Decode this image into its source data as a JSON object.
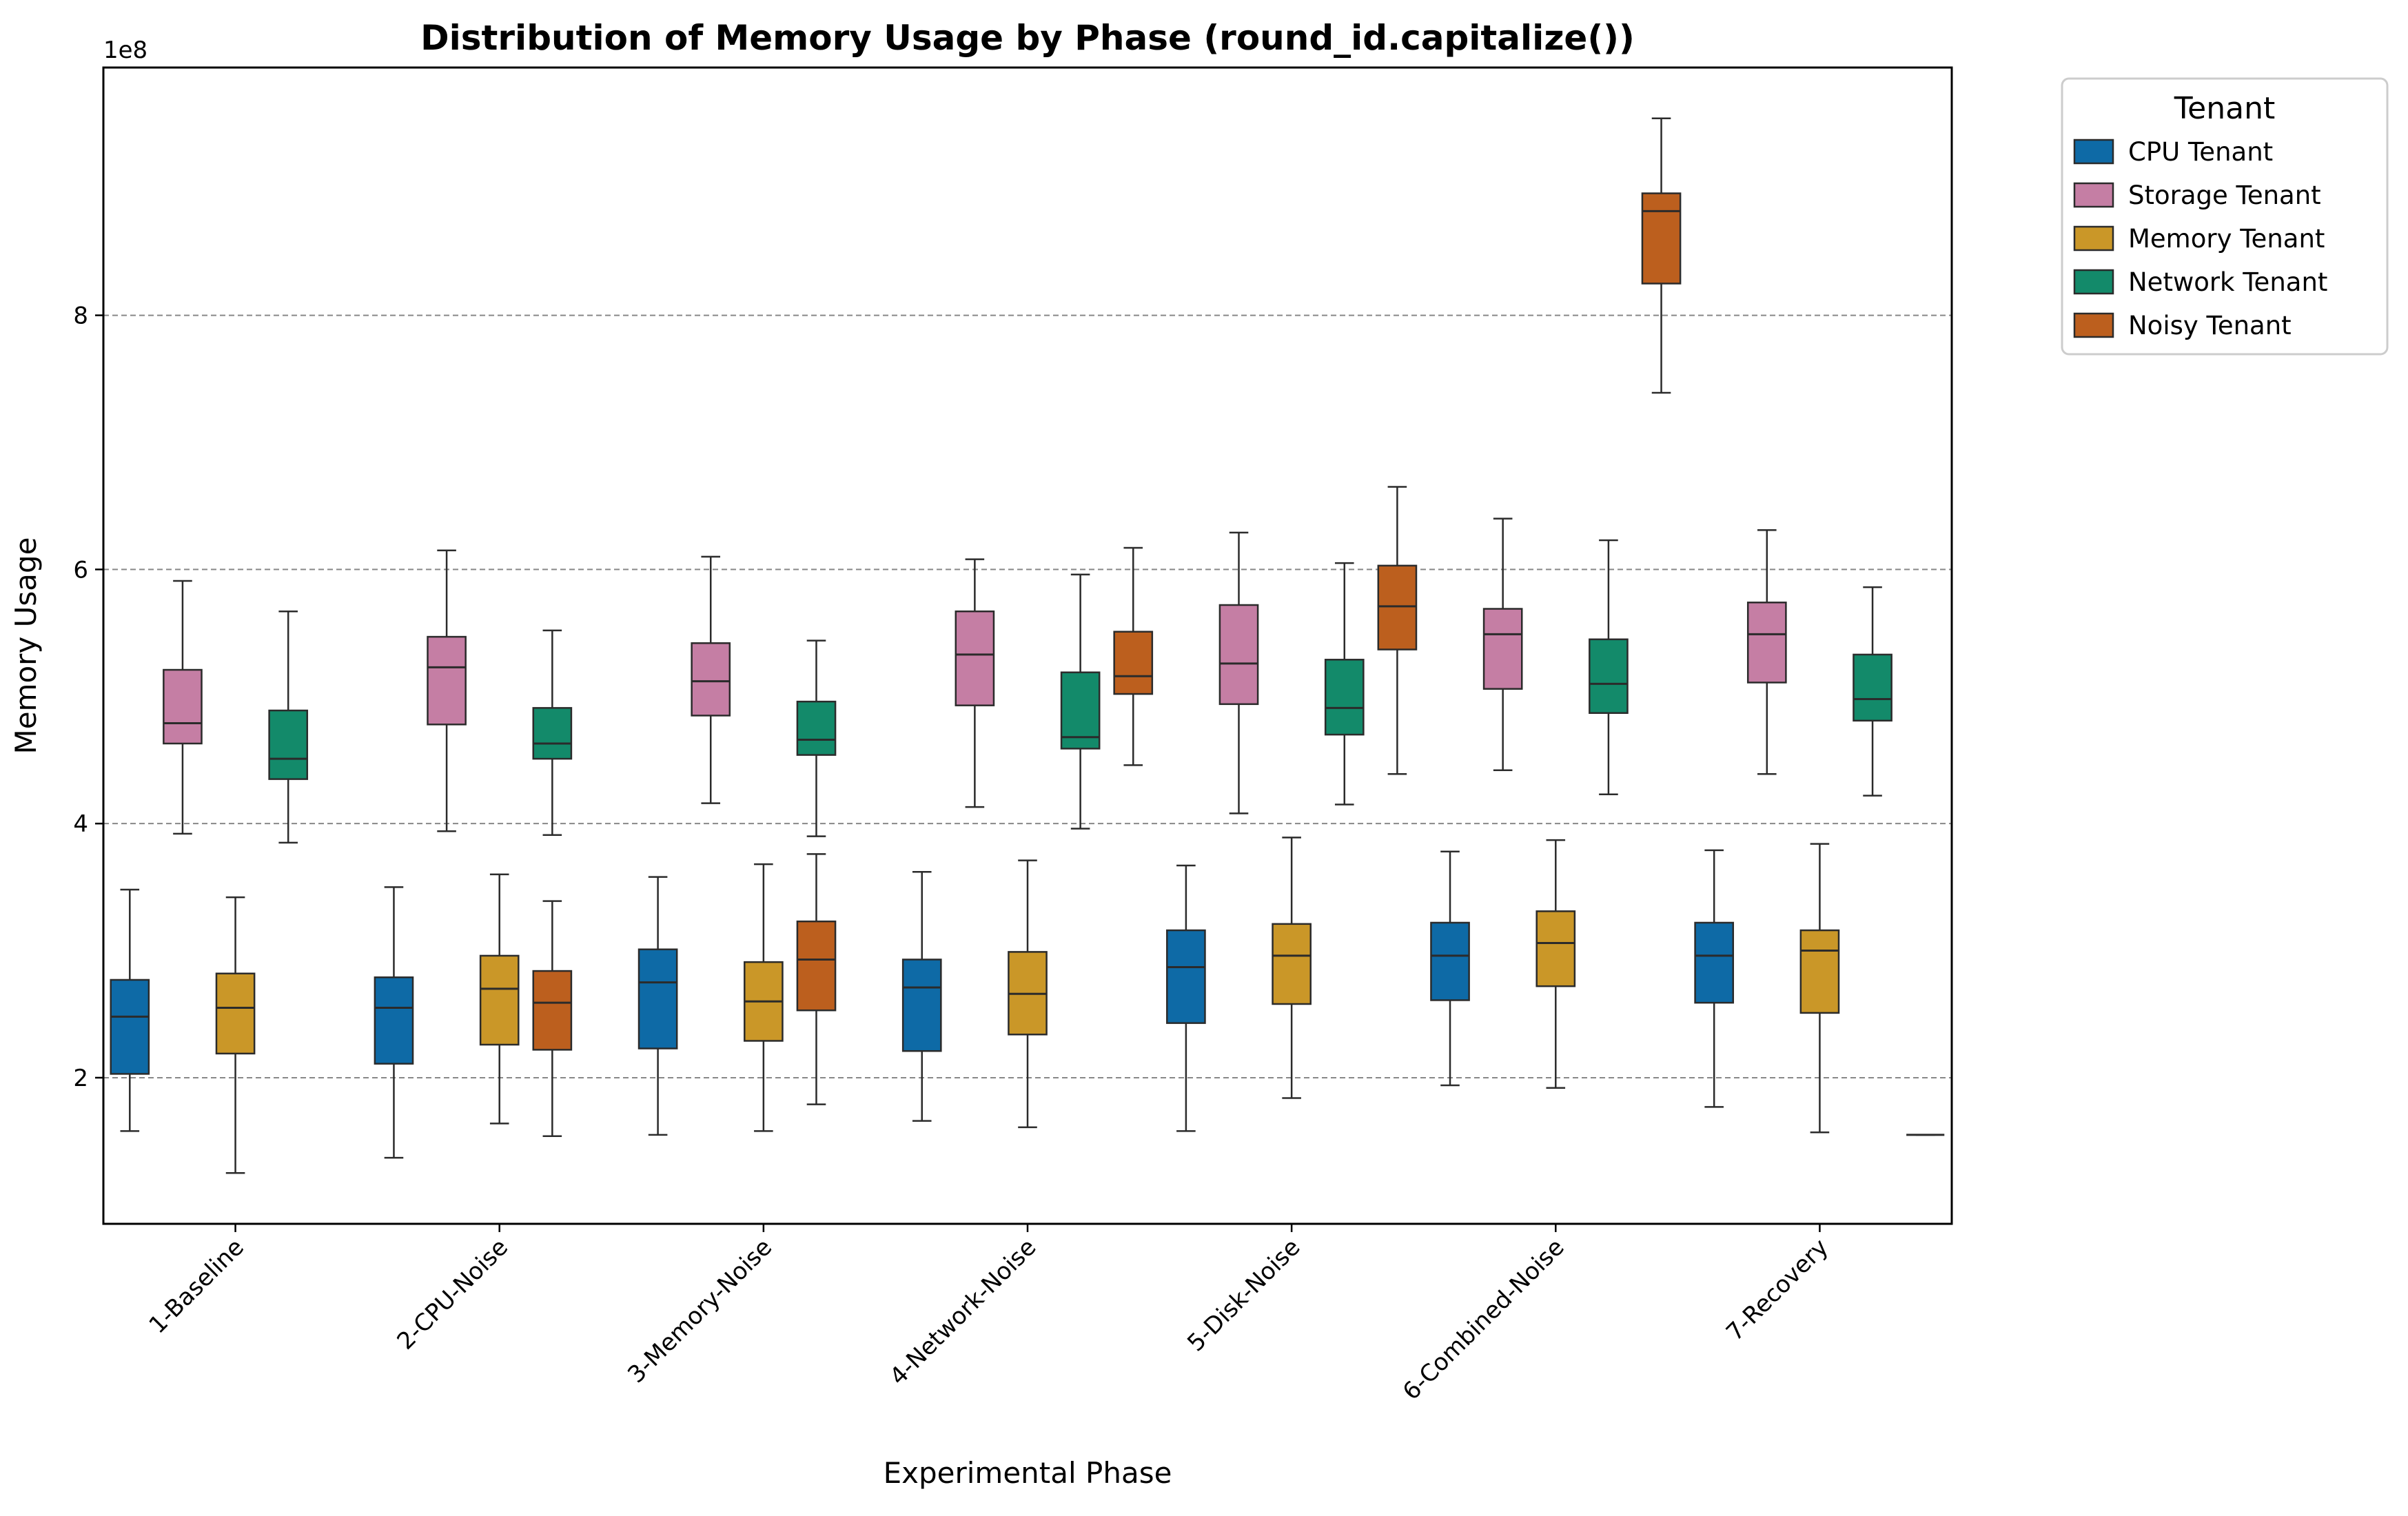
{
  "chart_data": {
    "type": "box",
    "title": "Distribution of Memory Usage by Phase (round_id.capitalize())",
    "xlabel": "Experimental Phase",
    "ylabel": "Memory Usage",
    "y_scale_label": "1e8",
    "ylim": [
      0.85,
      9.95
    ],
    "yticks": [
      2,
      4,
      6,
      8
    ],
    "grid": "y-dashed",
    "legend_title": "Tenant",
    "legend_position": "outside-top-right",
    "categories": [
      "1-Baseline",
      "2-CPU-Noise",
      "3-Memory-Noise",
      "4-Network-Noise",
      "5-Disk-Noise",
      "6-Combined-Noise",
      "7-Recovery"
    ],
    "series": [
      {
        "name": "CPU Tenant",
        "color": "#0e6aa6",
        "boxes": [
          {
            "category": "1-Baseline",
            "slot": 0,
            "min": 1.58,
            "q1": 2.03,
            "median": 2.48,
            "q3": 2.77,
            "max": 3.48
          },
          {
            "category": "2-CPU-Noise",
            "slot": 0,
            "min": 1.37,
            "q1": 2.11,
            "median": 2.55,
            "q3": 2.79,
            "max": 3.5
          },
          {
            "category": "3-Memory-Noise",
            "slot": 0,
            "min": 1.55,
            "q1": 2.23,
            "median": 2.75,
            "q3": 3.01,
            "max": 3.58
          },
          {
            "category": "4-Network-Noise",
            "slot": 0,
            "min": 1.66,
            "q1": 2.21,
            "median": 2.71,
            "q3": 2.93,
            "max": 3.62
          },
          {
            "category": "5-Disk-Noise",
            "slot": 0,
            "min": 1.58,
            "q1": 2.43,
            "median": 2.87,
            "q3": 3.16,
            "max": 3.67
          },
          {
            "category": "6-Combined-Noise",
            "slot": 0,
            "min": 1.94,
            "q1": 2.61,
            "median": 2.96,
            "q3": 3.22,
            "max": 3.78
          },
          {
            "category": "7-Recovery",
            "slot": 0,
            "min": 1.77,
            "q1": 2.59,
            "median": 2.96,
            "q3": 3.22,
            "max": 3.79
          }
        ]
      },
      {
        "name": "Storage Tenant",
        "color": "#c57ea4",
        "boxes": [
          {
            "category": "1-Baseline",
            "slot": 1,
            "min": 3.92,
            "q1": 4.63,
            "median": 4.79,
            "q3": 5.21,
            "max": 5.91
          },
          {
            "category": "2-CPU-Noise",
            "slot": 1,
            "min": 3.94,
            "q1": 4.78,
            "median": 5.23,
            "q3": 5.47,
            "max": 6.15
          },
          {
            "category": "3-Memory-Noise",
            "slot": 1,
            "min": 4.16,
            "q1": 4.85,
            "median": 5.12,
            "q3": 5.42,
            "max": 6.1
          },
          {
            "category": "4-Network-Noise",
            "slot": 1,
            "min": 4.13,
            "q1": 4.93,
            "median": 5.33,
            "q3": 5.67,
            "max": 6.08
          },
          {
            "category": "5-Disk-Noise",
            "slot": 1,
            "min": 4.08,
            "q1": 4.94,
            "median": 5.26,
            "q3": 5.72,
            "max": 6.29
          },
          {
            "category": "6-Combined-Noise",
            "slot": 1,
            "min": 4.42,
            "q1": 5.06,
            "median": 5.49,
            "q3": 5.69,
            "max": 6.4
          },
          {
            "category": "7-Recovery",
            "slot": 1,
            "min": 4.39,
            "q1": 5.11,
            "median": 5.49,
            "q3": 5.74,
            "max": 6.31
          }
        ]
      },
      {
        "name": "Memory Tenant",
        "color": "#ca9728",
        "boxes": [
          {
            "category": "1-Baseline",
            "slot": 2,
            "min": 1.25,
            "q1": 2.19,
            "median": 2.55,
            "q3": 2.82,
            "max": 3.42
          },
          {
            "category": "2-CPU-Noise",
            "slot": 2,
            "min": 1.64,
            "q1": 2.26,
            "median": 2.7,
            "q3": 2.96,
            "max": 3.6
          },
          {
            "category": "3-Memory-Noise",
            "slot": 2,
            "min": 1.58,
            "q1": 2.29,
            "median": 2.6,
            "q3": 2.91,
            "max": 3.68
          },
          {
            "category": "4-Network-Noise",
            "slot": 2,
            "min": 1.61,
            "q1": 2.34,
            "median": 2.66,
            "q3": 2.99,
            "max": 3.71
          },
          {
            "category": "5-Disk-Noise",
            "slot": 2,
            "min": 1.84,
            "q1": 2.58,
            "median": 2.96,
            "q3": 3.21,
            "max": 3.89
          },
          {
            "category": "6-Combined-Noise",
            "slot": 2,
            "min": 1.92,
            "q1": 2.72,
            "median": 3.06,
            "q3": 3.31,
            "max": 3.87
          },
          {
            "category": "7-Recovery",
            "slot": 2,
            "min": 1.57,
            "q1": 2.51,
            "median": 3.0,
            "q3": 3.16,
            "max": 3.84
          }
        ]
      },
      {
        "name": "Network Tenant",
        "color": "#138a6a",
        "boxes": [
          {
            "category": "1-Baseline",
            "slot": 3,
            "min": 3.85,
            "q1": 4.35,
            "median": 4.51,
            "q3": 4.89,
            "max": 5.67
          },
          {
            "category": "2-CPU-Noise",
            "slot": 3,
            "min": 3.91,
            "q1": 4.51,
            "median": 4.63,
            "q3": 4.91,
            "max": 5.52
          },
          {
            "category": "3-Memory-Noise",
            "slot": 3,
            "min": 3.9,
            "q1": 4.54,
            "median": 4.66,
            "q3": 4.96,
            "max": 5.44
          },
          {
            "category": "4-Network-Noise",
            "slot": 3,
            "min": 3.96,
            "q1": 4.59,
            "median": 4.68,
            "q3": 5.19,
            "max": 5.96
          },
          {
            "category": "5-Disk-Noise",
            "slot": 3,
            "min": 4.15,
            "q1": 4.7,
            "median": 4.91,
            "q3": 5.29,
            "max": 6.05
          },
          {
            "category": "6-Combined-Noise",
            "slot": 3,
            "min": 4.23,
            "q1": 4.87,
            "median": 5.1,
            "q3": 5.45,
            "max": 6.23
          },
          {
            "category": "7-Recovery",
            "slot": 3,
            "min": 4.22,
            "q1": 4.81,
            "median": 4.98,
            "q3": 5.33,
            "max": 5.86
          }
        ]
      },
      {
        "name": "Noisy Tenant",
        "color": "#bc5f1e",
        "boxes": [
          {
            "category": "2-CPU-Noise",
            "slot": 3,
            "min": 1.54,
            "q1": 2.22,
            "median": 2.59,
            "q3": 2.84,
            "max": 3.39
          },
          {
            "category": "3-Memory-Noise",
            "slot": 3,
            "min": 1.79,
            "q1": 2.53,
            "median": 2.93,
            "q3": 3.23,
            "max": 3.76
          },
          {
            "category": "4-Network-Noise",
            "slot": 4,
            "min": 4.46,
            "q1": 5.02,
            "median": 5.16,
            "q3": 5.51,
            "max": 6.17
          },
          {
            "category": "5-Disk-Noise",
            "slot": 4,
            "min": 4.39,
            "q1": 5.37,
            "median": 5.71,
            "q3": 6.03,
            "max": 6.65
          },
          {
            "category": "6-Combined-Noise",
            "slot": 4,
            "min": 7.39,
            "q1": 8.25,
            "median": 8.82,
            "q3": 8.96,
            "max": 9.55
          },
          {
            "category": "7-Recovery",
            "slot": 4,
            "min": 1.55,
            "q1": 1.55,
            "median": 1.55,
            "q3": 1.55,
            "max": 1.55
          }
        ]
      }
    ]
  }
}
